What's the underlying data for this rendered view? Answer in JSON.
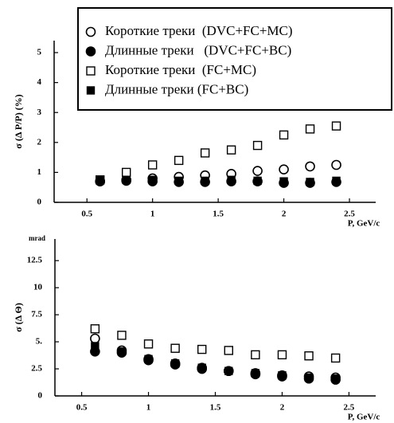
{
  "chart_data": [
    {
      "type": "scatter",
      "ylabel": "σ (Δ P/P) (%)",
      "xlabel": "P, GeV/c",
      "x": [
        0.6,
        0.8,
        1.0,
        1.2,
        1.4,
        1.6,
        1.8,
        2.0,
        2.2,
        2.4
      ],
      "xlim": [
        0.25,
        2.7
      ],
      "xticks": [
        0.5,
        1,
        1.5,
        2,
        2.5
      ],
      "ylim": [
        0,
        5.4
      ],
      "yticks": [
        0,
        1,
        2,
        3,
        4,
        5
      ],
      "legend": "top-right",
      "series": [
        {
          "name": "Короткие треки  (DVC+FC+MC)",
          "marker": "circle-open",
          "color": "#000000",
          "values": [
            0.7,
            0.75,
            0.8,
            0.85,
            0.9,
            0.95,
            1.05,
            1.1,
            1.2,
            1.25
          ]
        },
        {
          "name": "Длинные треки   (DVC+FC+BC)",
          "marker": "circle-filled",
          "color": "#000000",
          "values": [
            0.7,
            0.72,
            0.7,
            0.68,
            0.68,
            0.7,
            0.7,
            0.65,
            0.65,
            0.68
          ]
        },
        {
          "name": "Короткие треки  (FC+MC)",
          "marker": "square-open",
          "color": "#000000",
          "values": [
            0.75,
            1.0,
            1.25,
            1.4,
            1.65,
            1.75,
            1.9,
            2.25,
            2.45,
            2.55
          ]
        },
        {
          "name": "Длинные треки (FC+BC)",
          "marker": "square-filled",
          "color": "#000000",
          "values": [
            0.75,
            0.75,
            0.75,
            0.72,
            0.72,
            0.75,
            0.72,
            0.7,
            0.68,
            0.72
          ]
        }
      ]
    },
    {
      "type": "scatter",
      "ylabel": "σ (Δ Θ)",
      "yunit": "mrad",
      "xlabel": "P, GeV/c",
      "x": [
        0.6,
        0.8,
        1.0,
        1.2,
        1.4,
        1.6,
        1.8,
        2.0,
        2.2,
        2.4
      ],
      "xlim": [
        0.3,
        2.7
      ],
      "xticks": [
        0.5,
        1,
        1.5,
        2,
        2.5
      ],
      "ylim": [
        0,
        14.5
      ],
      "yticks": [
        0,
        2.5,
        {
          "value": 5,
          "label": "5."
        },
        7.5,
        10,
        12.5
      ],
      "series": [
        {
          "marker": "circle-open",
          "color": "#000000",
          "values": [
            5.3,
            4.2,
            3.4,
            3.0,
            2.6,
            2.3,
            2.1,
            1.9,
            1.8,
            1.7
          ]
        },
        {
          "marker": "circle-filled",
          "color": "#000000",
          "values": [
            4.1,
            4.0,
            3.3,
            2.9,
            2.5,
            2.3,
            2.0,
            1.8,
            1.6,
            1.5
          ]
        },
        {
          "marker": "square-open",
          "color": "#000000",
          "values": [
            6.2,
            5.6,
            4.8,
            4.4,
            4.3,
            4.2,
            3.8,
            3.8,
            3.7,
            3.5
          ]
        },
        {
          "marker": "square-filled",
          "color": "#000000",
          "values": [
            4.6,
            4.1,
            3.4,
            3.0,
            2.6,
            2.3,
            2.1,
            1.9,
            1.7,
            1.6
          ]
        }
      ]
    }
  ]
}
